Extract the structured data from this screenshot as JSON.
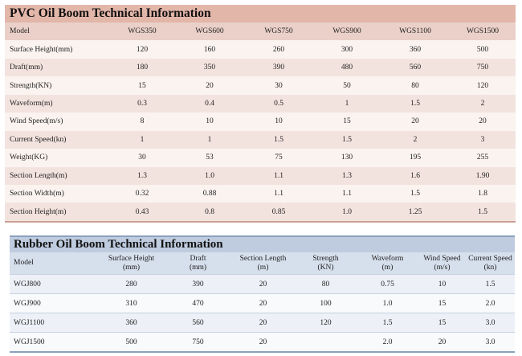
{
  "pvc": {
    "title": "PVC Oil Boom Technical Information",
    "columns": [
      "Model",
      "WGS350",
      "WGS600",
      "WGS750",
      "WGS900",
      "WGS1100",
      "WGS1500"
    ],
    "rows": [
      [
        "Surface Height(mm)",
        "120",
        "160",
        "260",
        "300",
        "360",
        "500"
      ],
      [
        "Draft(mm)",
        "180",
        "350",
        "390",
        "480",
        "560",
        "750"
      ],
      [
        "Strength(KN)",
        "15",
        "20",
        "30",
        "50",
        "80",
        "120"
      ],
      [
        "Waveform(m)",
        "0.3",
        "0.4",
        "0.5",
        "1",
        "1.5",
        "2"
      ],
      [
        "Wind Speed(m/s)",
        "8",
        "10",
        "10",
        "15",
        "20",
        "20"
      ],
      [
        "Current Speed(kn)",
        "1",
        "1",
        "1.5",
        "1.5",
        "2",
        "3"
      ],
      [
        "Weight(KG)",
        "30",
        "53",
        "75",
        "130",
        "195",
        "255"
      ],
      [
        "Section Length(m)",
        "1.3",
        "1.0",
        "1.1",
        "1.3",
        "1.6",
        "1.90"
      ],
      [
        "Section Width(m)",
        "0.32",
        "0.88",
        "1.1",
        "1.1",
        "1.5",
        "1.8"
      ],
      [
        "Section Height(m)",
        "0.43",
        "0.8",
        "0.85",
        "1.0",
        "1.25",
        "1.5"
      ]
    ]
  },
  "rubber": {
    "title": "Rubber Oil Boom Technical Information",
    "columns": [
      [
        "Model",
        ""
      ],
      [
        "Surface Height",
        "(mm)"
      ],
      [
        "Draft",
        "(mm)"
      ],
      [
        "Section Length",
        "(m)"
      ],
      [
        "Strength",
        "(KN)"
      ],
      [
        "Waveform",
        "(m)"
      ],
      [
        "Wind Speed",
        "(m/s)"
      ],
      [
        "Current Speed",
        "(kn)"
      ]
    ],
    "rows": [
      [
        "WGJ800",
        "280",
        "390",
        "20",
        "80",
        "0.75",
        "10",
        "1.5"
      ],
      [
        "WGJ900",
        "310",
        "470",
        "20",
        "100",
        "1.0",
        "15",
        "2.0"
      ],
      [
        "WGJ1100",
        "360",
        "560",
        "20",
        "120",
        "1.5",
        "15",
        "3.0"
      ],
      [
        "WGJ1500",
        "500",
        "750",
        "20",
        "",
        "2.0",
        "20",
        "3.0"
      ]
    ]
  }
}
